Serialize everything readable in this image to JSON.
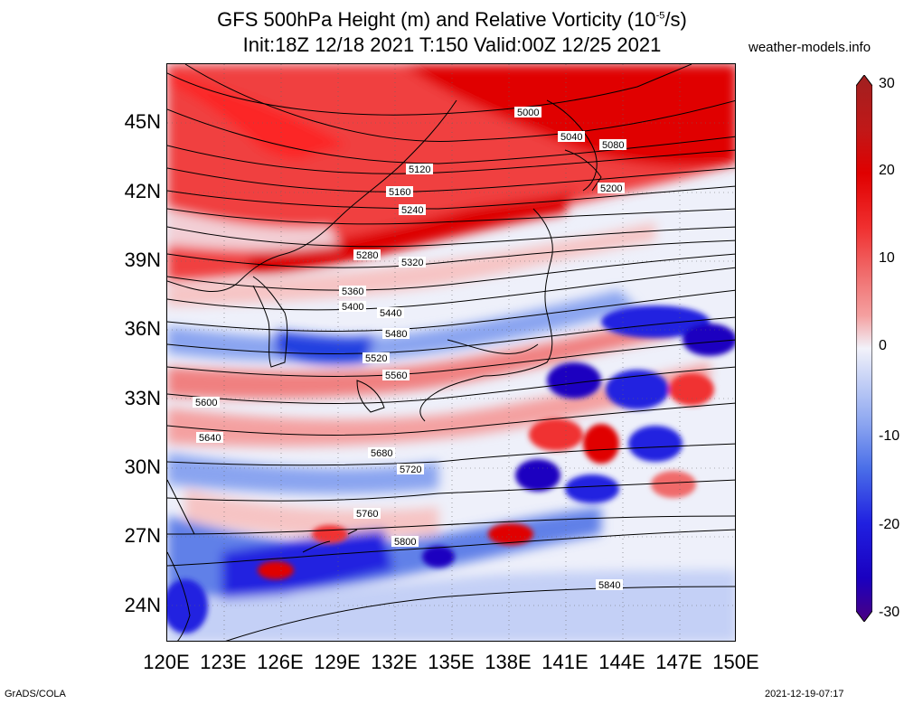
{
  "title": {
    "line1_prefix": "GFS 500hPa Height (m) and Relative Vorticity (10",
    "line1_exp": "-5",
    "line1_suffix": "/s)",
    "line2": "Init:18Z 12/18 2021 T:150 Valid:00Z 12/25 2021"
  },
  "site": "weather-models.info",
  "footer": {
    "left": "GrADS/COLA",
    "right": "2021-12-19-07:17"
  },
  "lat_labels": [
    "45N",
    "42N",
    "39N",
    "36N",
    "33N",
    "30N",
    "27N",
    "24N"
  ],
  "lon_labels": [
    "120E",
    "123E",
    "126E",
    "129E",
    "132E",
    "135E",
    "138E",
    "141E",
    "144E",
    "147E",
    "150E"
  ],
  "colorbar": {
    "labels": [
      "30",
      "20",
      "10",
      "0",
      "-10",
      "-20",
      "-30"
    ],
    "colors": [
      "#4a0080",
      "#1a00c0",
      "#2020e0",
      "#4a6ee8",
      "#8aa4f0",
      "#c4d0f6",
      "#f2f2fa",
      "#f8d0d0",
      "#f4a0a0",
      "#f06a6a",
      "#f03030",
      "#e00000",
      "#c01818",
      "#a02020"
    ]
  },
  "contour_labels": [
    "5000",
    "5040",
    "5080",
    "5120",
    "5160",
    "5200",
    "5240",
    "5280",
    "5320",
    "5360",
    "5400",
    "5440",
    "5480",
    "5520",
    "5560",
    "5600",
    "5640",
    "5680",
    "5720",
    "5760",
    "5800",
    "5840"
  ]
}
